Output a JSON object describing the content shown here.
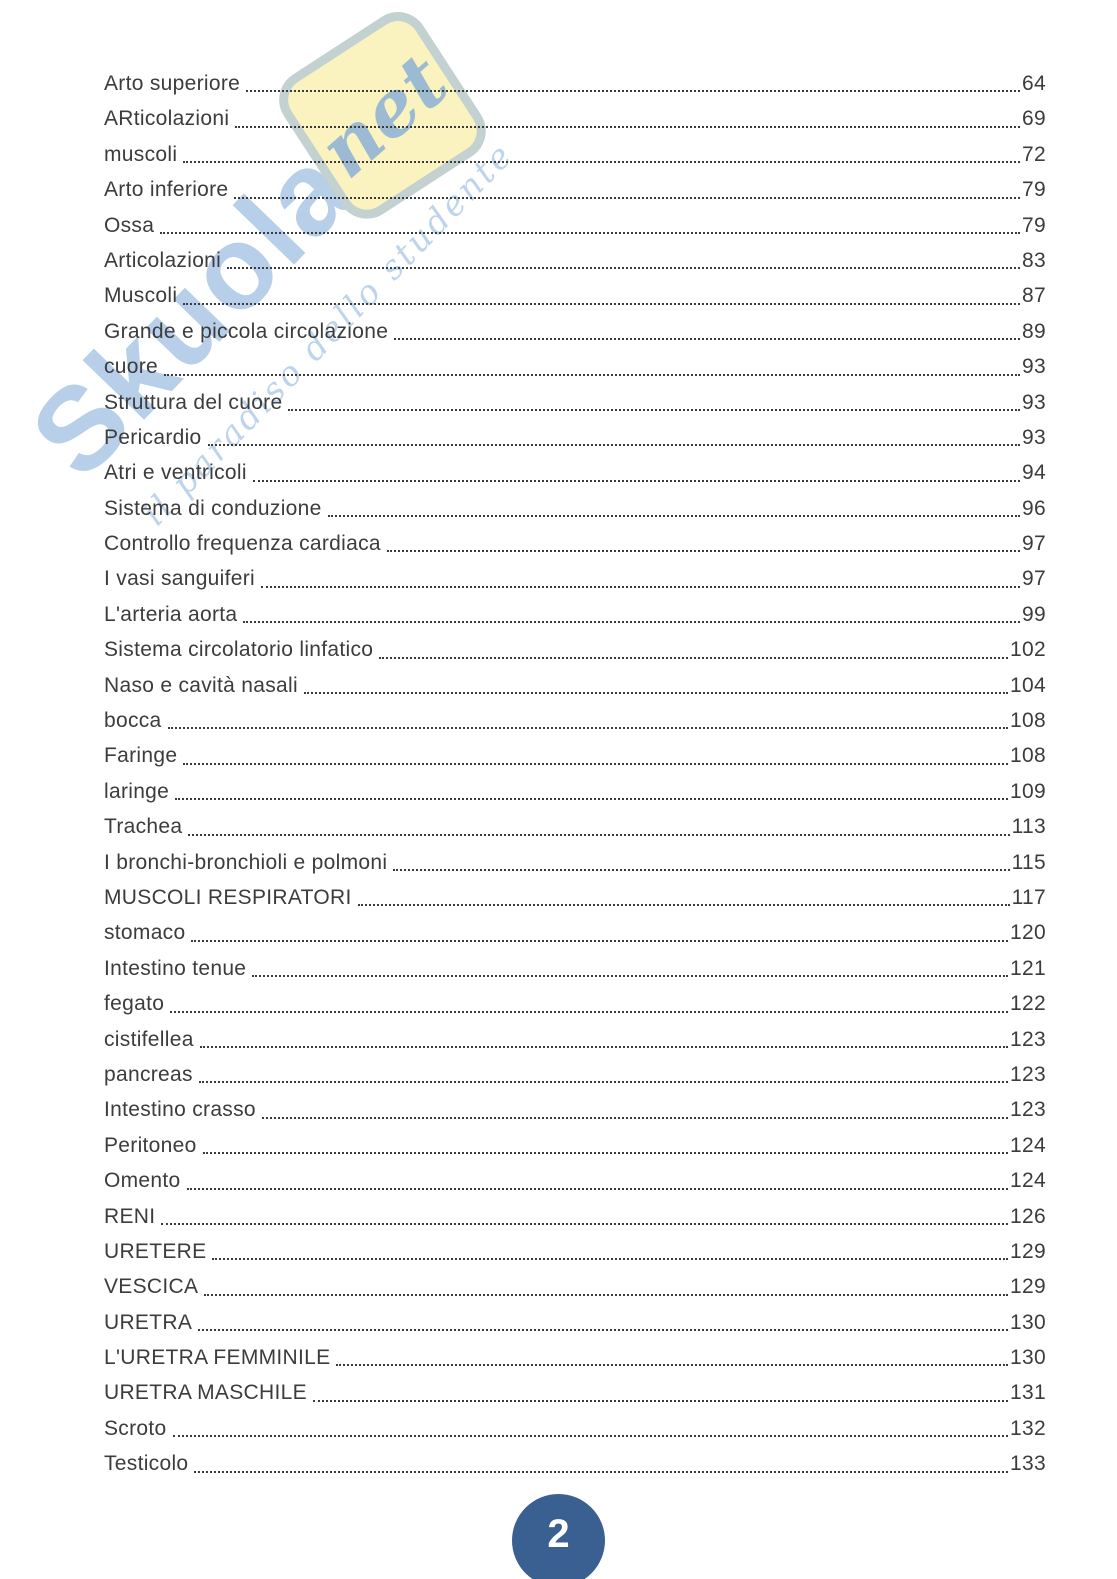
{
  "page": {
    "badge_label": "2"
  },
  "watermark": {
    "brand_main": "Skuola",
    "brand_suffix": "net",
    "tagline": "il paradiso dello studente"
  },
  "colors": {
    "text": "#3c3c3c",
    "badge_blue": "#3a6091",
    "watermark_blue": "#7da9d8",
    "watermark_yellow": "#faf3c0",
    "watermark_tagline": "#b7d0ea"
  },
  "toc": {
    "entries": [
      {
        "label": "Arto superiore",
        "page": "64"
      },
      {
        "label": "ARticolazioni",
        "page": "69"
      },
      {
        "label": "muscoli",
        "page": "72"
      },
      {
        "label": "Arto inferiore",
        "page": "79"
      },
      {
        "label": "Ossa",
        "page": "79"
      },
      {
        "label": "Articolazioni",
        "page": "83"
      },
      {
        "label": "Muscoli",
        "page": "87"
      },
      {
        "label": "Grande e piccola circolazione",
        "page": "89"
      },
      {
        "label": "cuore",
        "page": "93"
      },
      {
        "label": "Struttura del cuore",
        "page": "93"
      },
      {
        "label": "Pericardio",
        "page": "93"
      },
      {
        "label": "Atri e ventricoli",
        "page": "94"
      },
      {
        "label": "Sistema di conduzione",
        "page": "96"
      },
      {
        "label": "Controllo frequenza cardiaca",
        "page": "97"
      },
      {
        "label": "I vasi sanguiferi",
        "page": "97"
      },
      {
        "label": "L'arteria aorta",
        "page": "99"
      },
      {
        "label": "Sistema circolatorio linfatico",
        "page": "102"
      },
      {
        "label": "Naso e cavità nasali",
        "page": "104"
      },
      {
        "label": "bocca",
        "page": "108"
      },
      {
        "label": "Faringe",
        "page": "108"
      },
      {
        "label": "laringe",
        "page": "109"
      },
      {
        "label": "Trachea",
        "page": "113"
      },
      {
        "label": "I bronchi-bronchioli e polmoni",
        "page": "115"
      },
      {
        "label": "MUSCOLI RESPIRATORI",
        "page": "117"
      },
      {
        "label": "stomaco",
        "page": "120"
      },
      {
        "label": "Intestino tenue",
        "page": "121"
      },
      {
        "label": "fegato",
        "page": "122"
      },
      {
        "label": "cistifellea",
        "page": "123"
      },
      {
        "label": "pancreas",
        "page": "123"
      },
      {
        "label": "Intestino crasso",
        "page": "123"
      },
      {
        "label": "Peritoneo",
        "page": "124"
      },
      {
        "label": "Omento",
        "page": "124"
      },
      {
        "label": "RENI",
        "page": "126"
      },
      {
        "label": "URETERE",
        "page": "129"
      },
      {
        "label": "VESCICA",
        "page": "129"
      },
      {
        "label": "URETRA",
        "page": "130"
      },
      {
        "label": "L'URETRA FEMMINILE",
        "page": "130"
      },
      {
        "label": "URETRA MASCHILE",
        "page": "131"
      },
      {
        "label": "Scroto",
        "page": "132"
      },
      {
        "label": "Testicolo",
        "page": "133"
      }
    ]
  }
}
